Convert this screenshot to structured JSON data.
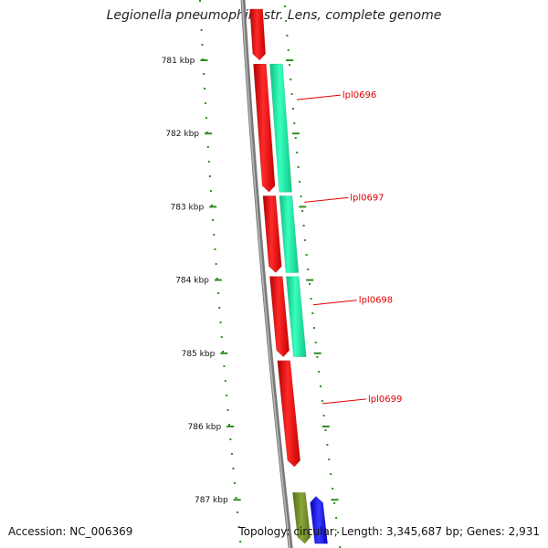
{
  "header": {
    "title": "Legionella pneumophila str. Lens, complete genome"
  },
  "footer": {
    "accession": "Accession: NC_006369",
    "summary": "Topology: circular; Length: 3,345,687 bp; Genes: 2,931"
  },
  "colors": {
    "backbone": "#7a7a7a",
    "forward_gene": "#ee0000",
    "reverse_gene": "#19f0a0",
    "olive_gene": "#6b8e23",
    "blue_gene": "#1010ee",
    "tick": "#2f8f1f",
    "label_red": "#e00000"
  },
  "scale": {
    "ticks": [
      {
        "position_kbp": 781,
        "label": "781 kbp"
      },
      {
        "position_kbp": 782,
        "label": "782 kbp"
      },
      {
        "position_kbp": 783,
        "label": "783 kbp"
      },
      {
        "position_kbp": 784,
        "label": "784 kbp"
      },
      {
        "position_kbp": 785,
        "label": "785 kbp"
      },
      {
        "position_kbp": 786,
        "label": "786 kbp"
      },
      {
        "position_kbp": 787,
        "label": "787 kbp"
      }
    ]
  },
  "genes": [
    {
      "track": "forward",
      "start_kbp": 780.3,
      "end_kbp": 781.0,
      "strand": "+"
    },
    {
      "track": "forward",
      "start_kbp": 781.05,
      "end_kbp": 782.8,
      "strand": "+"
    },
    {
      "track": "forward",
      "start_kbp": 782.85,
      "end_kbp": 783.9,
      "strand": "+"
    },
    {
      "track": "forward",
      "start_kbp": 783.95,
      "end_kbp": 785.05,
      "strand": "+"
    },
    {
      "track": "forward",
      "start_kbp": 785.1,
      "end_kbp": 786.55,
      "strand": "+"
    },
    {
      "track": "reverse",
      "start_kbp": 781.05,
      "end_kbp": 782.8,
      "strand": "-",
      "label": "lpl0696"
    },
    {
      "track": "reverse",
      "start_kbp": 782.85,
      "end_kbp": 783.9,
      "strand": "-",
      "label": "lpl0697"
    },
    {
      "track": "reverse",
      "start_kbp": 783.95,
      "end_kbp": 785.05,
      "strand": "-",
      "label": "lpl0698"
    },
    {
      "track": "reverse_out",
      "start_kbp": 785.1,
      "end_kbp": 786.2,
      "strand": "-",
      "label": "lpl0699",
      "hidden": true
    },
    {
      "track": "olive",
      "start_kbp": 786.9,
      "end_kbp": 787.6,
      "strand": "+"
    },
    {
      "track": "blue",
      "start_kbp": 786.95,
      "end_kbp": 787.6,
      "strand": "-"
    }
  ],
  "labels": [
    {
      "text": "lpl0696",
      "at_kbp": 781.5
    },
    {
      "text": "lpl0697",
      "at_kbp": 782.9
    },
    {
      "text": "lpl0698",
      "at_kbp": 784.3
    },
    {
      "text": "lpl0699",
      "at_kbp": 785.65
    }
  ]
}
